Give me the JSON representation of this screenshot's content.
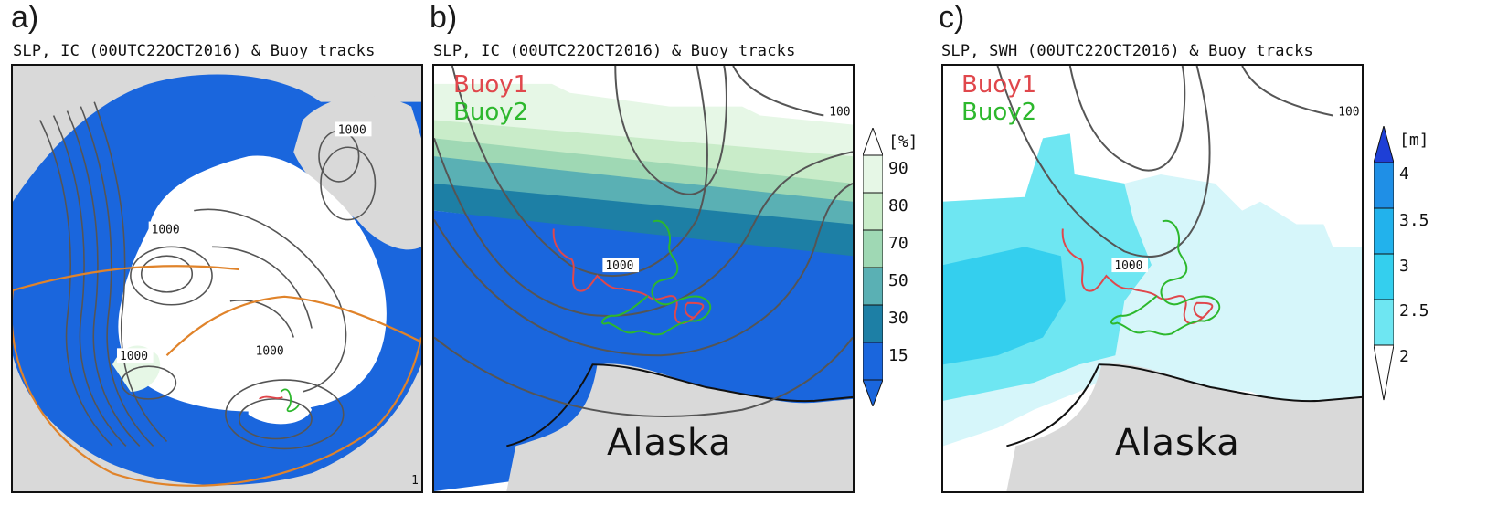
{
  "panels": [
    {
      "letter": "a)",
      "title": "SLP, IC (00UTC22OCT2016) & Buoy tracks",
      "contour_labels": [
        "1000",
        "1000",
        "1000",
        "1000"
      ],
      "corner_label": "1"
    },
    {
      "letter": "b)",
      "title": "SLP, IC (00UTC22OCT2016) & Buoy tracks",
      "contour_labels": [
        "1000",
        "100"
      ],
      "legend": [
        {
          "name": "Buoy1",
          "color": "#e0474c"
        },
        {
          "name": "Buoy2",
          "color": "#2db82d"
        }
      ],
      "region_label": "Alaska",
      "colorbar": {
        "unit": "[%]",
        "ticks": [
          "90",
          "80",
          "70",
          "50",
          "30",
          "15"
        ],
        "colors": [
          "#ffffff",
          "#e6f7e6",
          "#c9ecc9",
          "#9fd8b4",
          "#5ab0b4",
          "#1d7fa5",
          "#1a66dd"
        ]
      }
    },
    {
      "letter": "c)",
      "title": "SLP, SWH (00UTC22OCT2016) & Buoy tracks",
      "contour_labels": [
        "1000",
        "100"
      ],
      "legend": [
        {
          "name": "Buoy1",
          "color": "#e0474c"
        },
        {
          "name": "Buoy2",
          "color": "#2db82d"
        }
      ],
      "region_label": "Alaska",
      "colorbar": {
        "unit": "[m]",
        "ticks": [
          "4",
          "3.5",
          "3",
          "2.5",
          "2"
        ],
        "colors": [
          "#1e3fd6",
          "#1f8fe6",
          "#22b2ec",
          "#34cfee",
          "#6ee6f2",
          "#d6f6fa"
        ]
      }
    }
  ],
  "colors": {
    "ice_high": "#ffffff",
    "open_water": "#1a66dd",
    "land": "#d9d9d9",
    "contour": "#555555",
    "domain_outline": "#e0832a"
  }
}
